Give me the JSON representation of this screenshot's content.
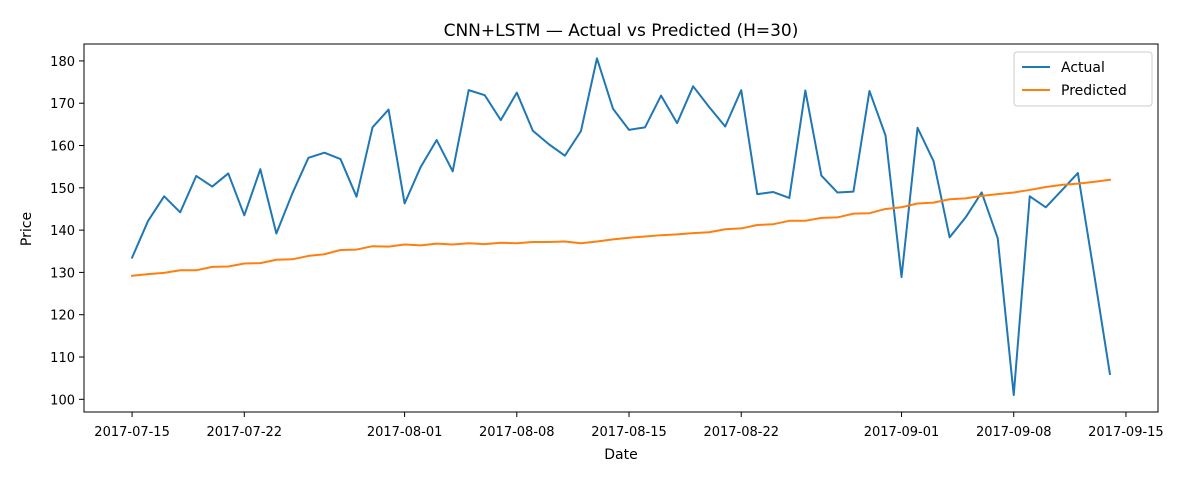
{
  "chart_data": {
    "type": "line",
    "title": "CNN+LSTM — Actual vs Predicted (H=30)",
    "xlabel": "Date",
    "ylabel": "Price",
    "xlim": [
      "2017-07-12",
      "2017-09-17"
    ],
    "ylim": [
      97,
      184
    ],
    "x_ticks": [
      "2017-07-15",
      "2017-07-22",
      "2017-08-01",
      "2017-08-08",
      "2017-08-15",
      "2017-08-22",
      "2017-09-01",
      "2017-09-08",
      "2017-09-15"
    ],
    "y_ticks": [
      100,
      110,
      120,
      130,
      140,
      150,
      160,
      170,
      180
    ],
    "grid": false,
    "legend": "top-right",
    "x": [
      "2017-07-15",
      "2017-07-16",
      "2017-07-17",
      "2017-07-18",
      "2017-07-19",
      "2017-07-20",
      "2017-07-21",
      "2017-07-22",
      "2017-07-23",
      "2017-07-24",
      "2017-07-25",
      "2017-07-26",
      "2017-07-27",
      "2017-07-28",
      "2017-07-29",
      "2017-07-30",
      "2017-07-31",
      "2017-08-01",
      "2017-08-02",
      "2017-08-03",
      "2017-08-04",
      "2017-08-05",
      "2017-08-06",
      "2017-08-07",
      "2017-08-08",
      "2017-08-09",
      "2017-08-10",
      "2017-08-11",
      "2017-08-12",
      "2017-08-13",
      "2017-08-14",
      "2017-08-15",
      "2017-08-16",
      "2017-08-17",
      "2017-08-18",
      "2017-08-19",
      "2017-08-20",
      "2017-08-21",
      "2017-08-22",
      "2017-08-23",
      "2017-08-24",
      "2017-08-25",
      "2017-08-26",
      "2017-08-27",
      "2017-08-28",
      "2017-08-29",
      "2017-08-30",
      "2017-08-31",
      "2017-09-01",
      "2017-09-02",
      "2017-09-03",
      "2017-09-04",
      "2017-09-05",
      "2017-09-06",
      "2017-09-07",
      "2017-09-08",
      "2017-09-09",
      "2017-09-10",
      "2017-09-11",
      "2017-09-12",
      "2017-09-13",
      "2017-09-14"
    ],
    "series": [
      {
        "name": "Actual",
        "color": "#1f77b4",
        "values": [
          133.5,
          142.2,
          148.0,
          144.2,
          152.8,
          150.3,
          153.4,
          143.5,
          154.4,
          139.2,
          148.7,
          157.1,
          158.3,
          156.8,
          147.9,
          164.3,
          168.5,
          146.3,
          154.9,
          161.3,
          153.9,
          173.1,
          171.9,
          166.0,
          172.5,
          163.5,
          160.3,
          157.6,
          163.4,
          180.6,
          168.7,
          163.7,
          164.3,
          171.8,
          165.3,
          174.0,
          169.1,
          164.5,
          173.1,
          148.5,
          149.0,
          147.6,
          173.0,
          152.9,
          148.9,
          149.1,
          172.9,
          162.4,
          128.9,
          164.2,
          156.3,
          138.3,
          143.0,
          148.9,
          138.1,
          101.0,
          148.0,
          145.4,
          149.4,
          153.5,
          130.0,
          106.0
        ]
      },
      {
        "name": "Predicted",
        "color": "#ff7f0e",
        "values": [
          129.2,
          129.6,
          129.9,
          130.5,
          130.5,
          131.3,
          131.4,
          132.1,
          132.2,
          133.0,
          133.1,
          133.9,
          134.3,
          135.3,
          135.4,
          136.2,
          136.1,
          136.6,
          136.4,
          136.8,
          136.6,
          136.9,
          136.7,
          137.0,
          136.9,
          137.2,
          137.2,
          137.3,
          136.9,
          137.3,
          137.8,
          138.2,
          138.5,
          138.8,
          139.0,
          139.3,
          139.5,
          140.2,
          140.4,
          141.2,
          141.4,
          142.2,
          142.2,
          142.9,
          143.0,
          143.9,
          144.0,
          145.0,
          145.4,
          146.3,
          146.5,
          147.3,
          147.5,
          148.1,
          148.5,
          148.9,
          149.5,
          150.2,
          150.7,
          151.0,
          151.4,
          151.9
        ]
      }
    ]
  }
}
